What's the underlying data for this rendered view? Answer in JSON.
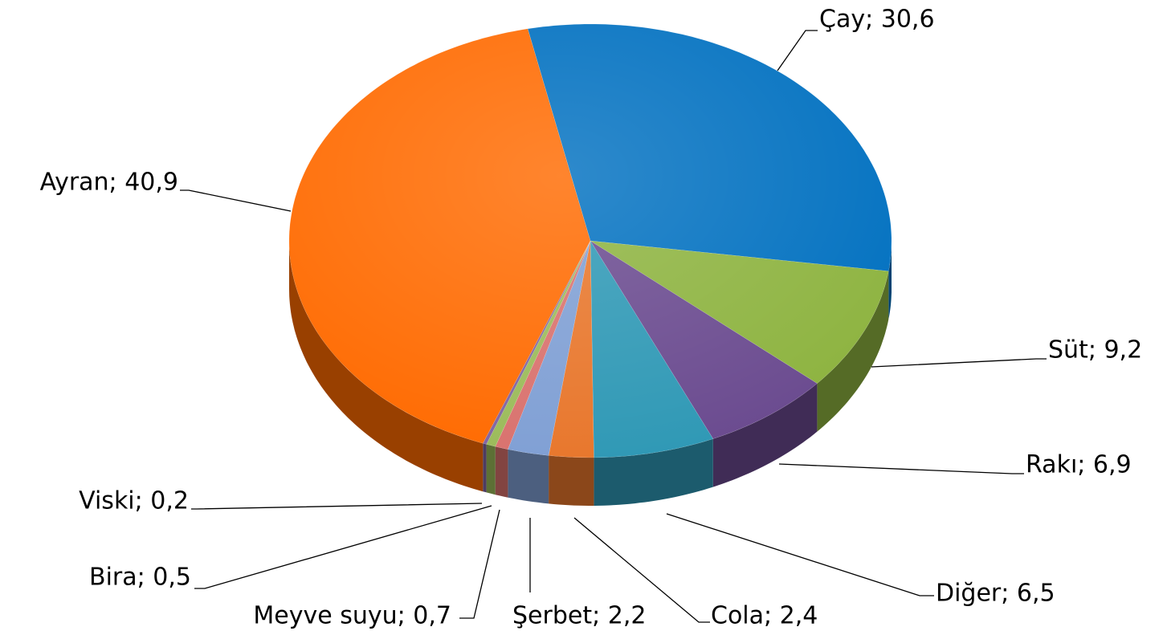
{
  "chart_data": {
    "type": "pie3d",
    "values": [
      30.6,
      9.2,
      6.9,
      6.5,
      2.4,
      2.2,
      0.7,
      0.5,
      0.2,
      40.9
    ],
    "value_labels": [
      "Çay; 30,6",
      "Süt; 9,2",
      "Rakı; 6,9",
      "Diğer; 6,5",
      "Cola; 2,4",
      "Şerbet; 2,2",
      "Meyve suyu; 0,7",
      "Bira; 0,5",
      "Viski; 0,2",
      "Ayran; 40,9"
    ],
    "colors": [
      "#0070c0",
      "#8db33f",
      "#6a4a8f",
      "#2e98b5",
      "#e8762b",
      "#7f9fd4",
      "#d9716d",
      "#9bbb59",
      "#8064a2",
      "#ff6a00"
    ]
  }
}
